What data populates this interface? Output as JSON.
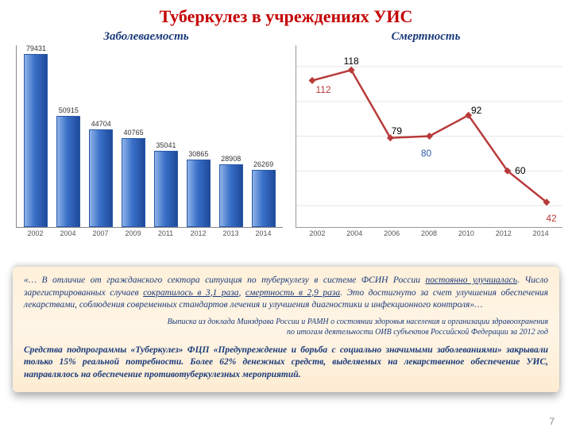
{
  "title": "Туберкулез в учреждениях УИС",
  "incidence_chart": {
    "title": "Заболеваемость",
    "type": "bar",
    "categories": [
      "2002",
      "2004",
      "2007",
      "2009",
      "2011",
      "2012",
      "2013",
      "2014"
    ],
    "values": [
      79431,
      50915,
      44704,
      40765,
      35041,
      30865,
      28908,
      26269
    ],
    "ymax": 80000,
    "bar_gradient": [
      "#8fb3e8",
      "#3a70c9",
      "#1e4a9a"
    ],
    "axis_color": "#888",
    "label_color": "#333",
    "label_fontsize": 9
  },
  "mortality_chart": {
    "title": "Смертность",
    "type": "line",
    "categories": [
      "2002",
      "2004",
      "2006",
      "2008",
      "2010",
      "2012",
      "2014"
    ],
    "values": [
      112,
      118,
      79,
      80,
      92,
      60,
      42
    ],
    "point_colors": [
      "#b83a3a",
      "#000000",
      "#000000",
      "#2f5aa8",
      "#000000",
      "#000000",
      "#b83a3a"
    ],
    "ylim": [
      30,
      130
    ],
    "line_color": "#b83a3a",
    "marker_color": "#b83a3a",
    "marker_style": "diamond",
    "axis_color": "#999",
    "grid_color": "#e5e5e5",
    "label_fontsize": 12
  },
  "panel": {
    "p1_a": "«… В отличие от гражданского сектора ситуация по туберкулезу в системе ФСИН России ",
    "p1_u1": "постоянно улучшалась",
    "p1_b": ". Число зарегистрированных случаев ",
    "p1_u2": "сократилось в 3,1 раза",
    "p1_c": ", ",
    "p1_u3": "смертность в 2,9 раза",
    "p1_d": ". Это достигнуто за счет улучшения обеспечения лекарствами, соблюдения современных стандартов лечения и улучшения диагностики и  инфекционного контроля»…",
    "src1": "Выписка из доклада Минздрава России и РАМН о состоянии здоровья населения и организации здравоохранения",
    "src2": "по итогам деятельности ОИВ субъектов Российской Федерации за 2012 год",
    "p2": "Средства подпрограммы «Туберкулез» ФЦП «Предупреждение и борьба с социально значимыми заболеваниями» закрывали только 15% реальной потребности. Более 62% денежных средств, выделяемых на лекарственное обеспечение УИС, направлялось на обеспечение противотуберкулезных мероприятий."
  },
  "page_number": "7",
  "colors": {
    "title": "#c40000",
    "subtitle": "#1a3a7a",
    "panel_text": "#1a3a7a",
    "panel_bg_top": "#fff0da",
    "panel_bg_bottom": "#fdecd2"
  }
}
